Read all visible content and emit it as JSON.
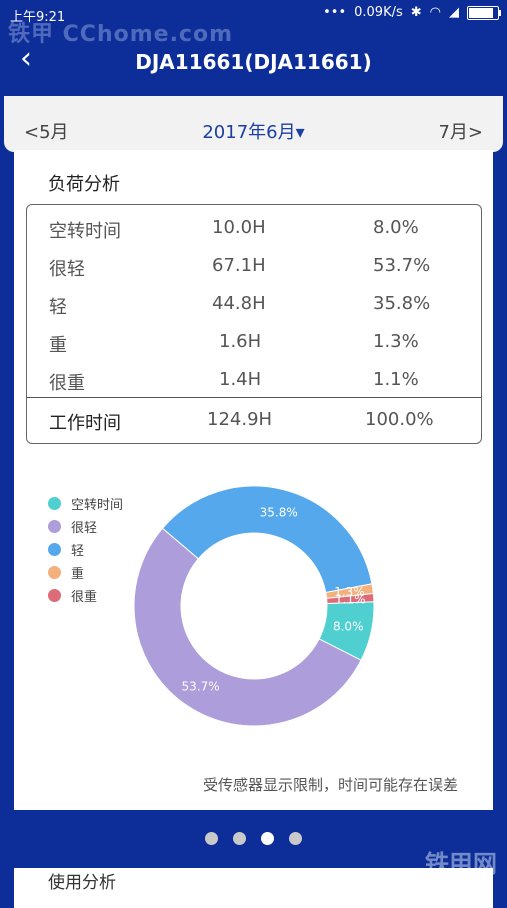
{
  "status_bar": {
    "time": "上午9:21",
    "network_speed": "0.09K/s"
  },
  "watermark": {
    "top": "铁甲 CChome.com",
    "bottom": "铁甲网"
  },
  "app_bar": {
    "title": "DJA11661(DJA11661)"
  },
  "month_nav": {
    "prev": "<5月",
    "current": "2017年6月▾",
    "next": "7月>"
  },
  "load_analysis": {
    "title": "负荷分析",
    "rows": [
      {
        "name": "空转时间",
        "hours": "10.0H",
        "percent": "8.0%"
      },
      {
        "name": "很轻",
        "hours": "67.1H",
        "percent": "53.7%"
      },
      {
        "name": "轻",
        "hours": "44.8H",
        "percent": "35.8%"
      },
      {
        "name": "重",
        "hours": "1.6H",
        "percent": "1.3%"
      },
      {
        "name": "很重",
        "hours": "1.4H",
        "percent": "1.1%"
      }
    ],
    "total": {
      "name": "工作时间",
      "hours": "124.9H",
      "percent": "100.0%"
    }
  },
  "chart_data": {
    "type": "pie",
    "categories": [
      "空转时间",
      "很轻",
      "轻",
      "重",
      "很重"
    ],
    "values": [
      8.0,
      53.7,
      35.8,
      1.3,
      1.1
    ],
    "labels": [
      "8.0%",
      "53.7%",
      "35.8%",
      "1.3%",
      "1.1%"
    ],
    "colors": [
      "#4fcfcf",
      "#ad9ddb",
      "#55a8ec",
      "#f3b07d",
      "#dd6b78"
    ],
    "legend_position": "top-left"
  },
  "note": "受传感器显示限制，时间可能存在误差",
  "pager": {
    "count": 4,
    "active": 2
  },
  "next_card": {
    "title": "使用分析"
  }
}
